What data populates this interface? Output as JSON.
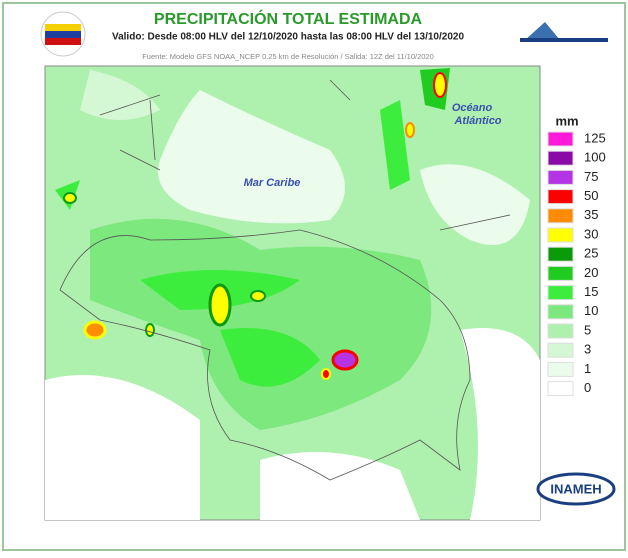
{
  "header": {
    "title": "PRECIPITACIÓN TOTAL ESTIMADA",
    "subtitle": "Valido: Desde 08:00 HLV del 12/10/2020 hasta las 08:00 HLV del 13/10/2020",
    "source": "Fuente: Modelo GFS NOAA_NCEP 0.25 km de Resolución / Salida: 12Z del 11/10/2020"
  },
  "map": {
    "labels": [
      "Mar Caribe",
      "Océano",
      "Atlántico"
    ]
  },
  "legend": {
    "unit": "mm",
    "items": [
      {
        "value": 125,
        "color": "#ff1ad9"
      },
      {
        "value": 100,
        "color": "#8a0aa8"
      },
      {
        "value": 75,
        "color": "#b535e6"
      },
      {
        "value": 50,
        "color": "#ff0000"
      },
      {
        "value": 35,
        "color": "#ff8c00"
      },
      {
        "value": 30,
        "color": "#ffff00"
      },
      {
        "value": 25,
        "color": "#0a9a0a"
      },
      {
        "value": 20,
        "color": "#1fcc1f"
      },
      {
        "value": 15,
        "color": "#3ded3d"
      },
      {
        "value": 10,
        "color": "#7de87d"
      },
      {
        "value": 5,
        "color": "#aef0ae"
      },
      {
        "value": 3,
        "color": "#d4f7d4"
      },
      {
        "value": 1,
        "color": "#ecfcec"
      },
      {
        "value": 0,
        "color": "#ffffff"
      }
    ]
  },
  "logo": {
    "text": "INAMEH"
  }
}
